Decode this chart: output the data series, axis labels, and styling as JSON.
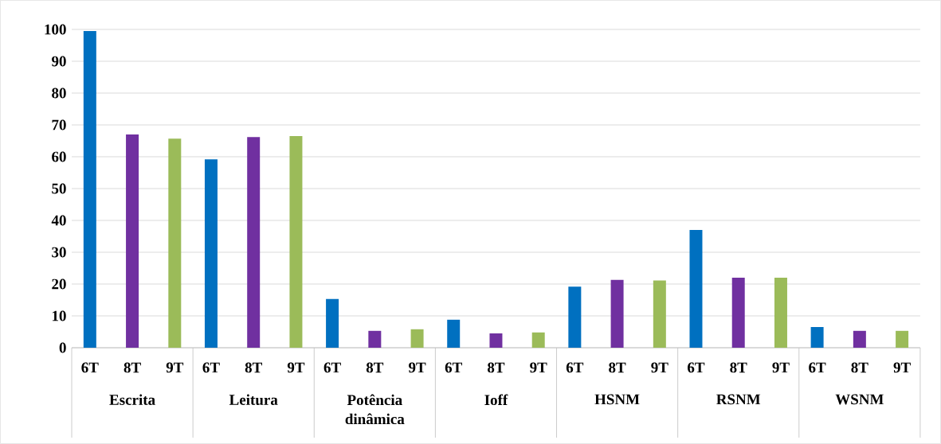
{
  "chart_data": {
    "type": "bar",
    "categories": [
      "Escrita",
      "Leitura",
      "Potência dinâmica",
      "Ioff",
      "HSNM",
      "RSNM",
      "WSNM"
    ],
    "series": [
      {
        "name": "6T",
        "color": "#0070c0",
        "values": [
          99.5,
          59.2,
          15.3,
          8.8,
          19.2,
          37,
          6.5
        ]
      },
      {
        "name": "8T",
        "color": "#7030a0",
        "values": [
          67,
          66.2,
          5.3,
          4.5,
          21.3,
          22,
          5.3
        ]
      },
      {
        "name": "9T",
        "color": "#9bbb59",
        "values": [
          65.7,
          66.5,
          5.8,
          4.8,
          21.1,
          22,
          5.3
        ]
      }
    ],
    "ylim": [
      0,
      100
    ],
    "yticks": [
      0,
      10,
      20,
      30,
      40,
      50,
      60,
      70,
      80,
      90,
      100
    ],
    "grid": "y"
  }
}
